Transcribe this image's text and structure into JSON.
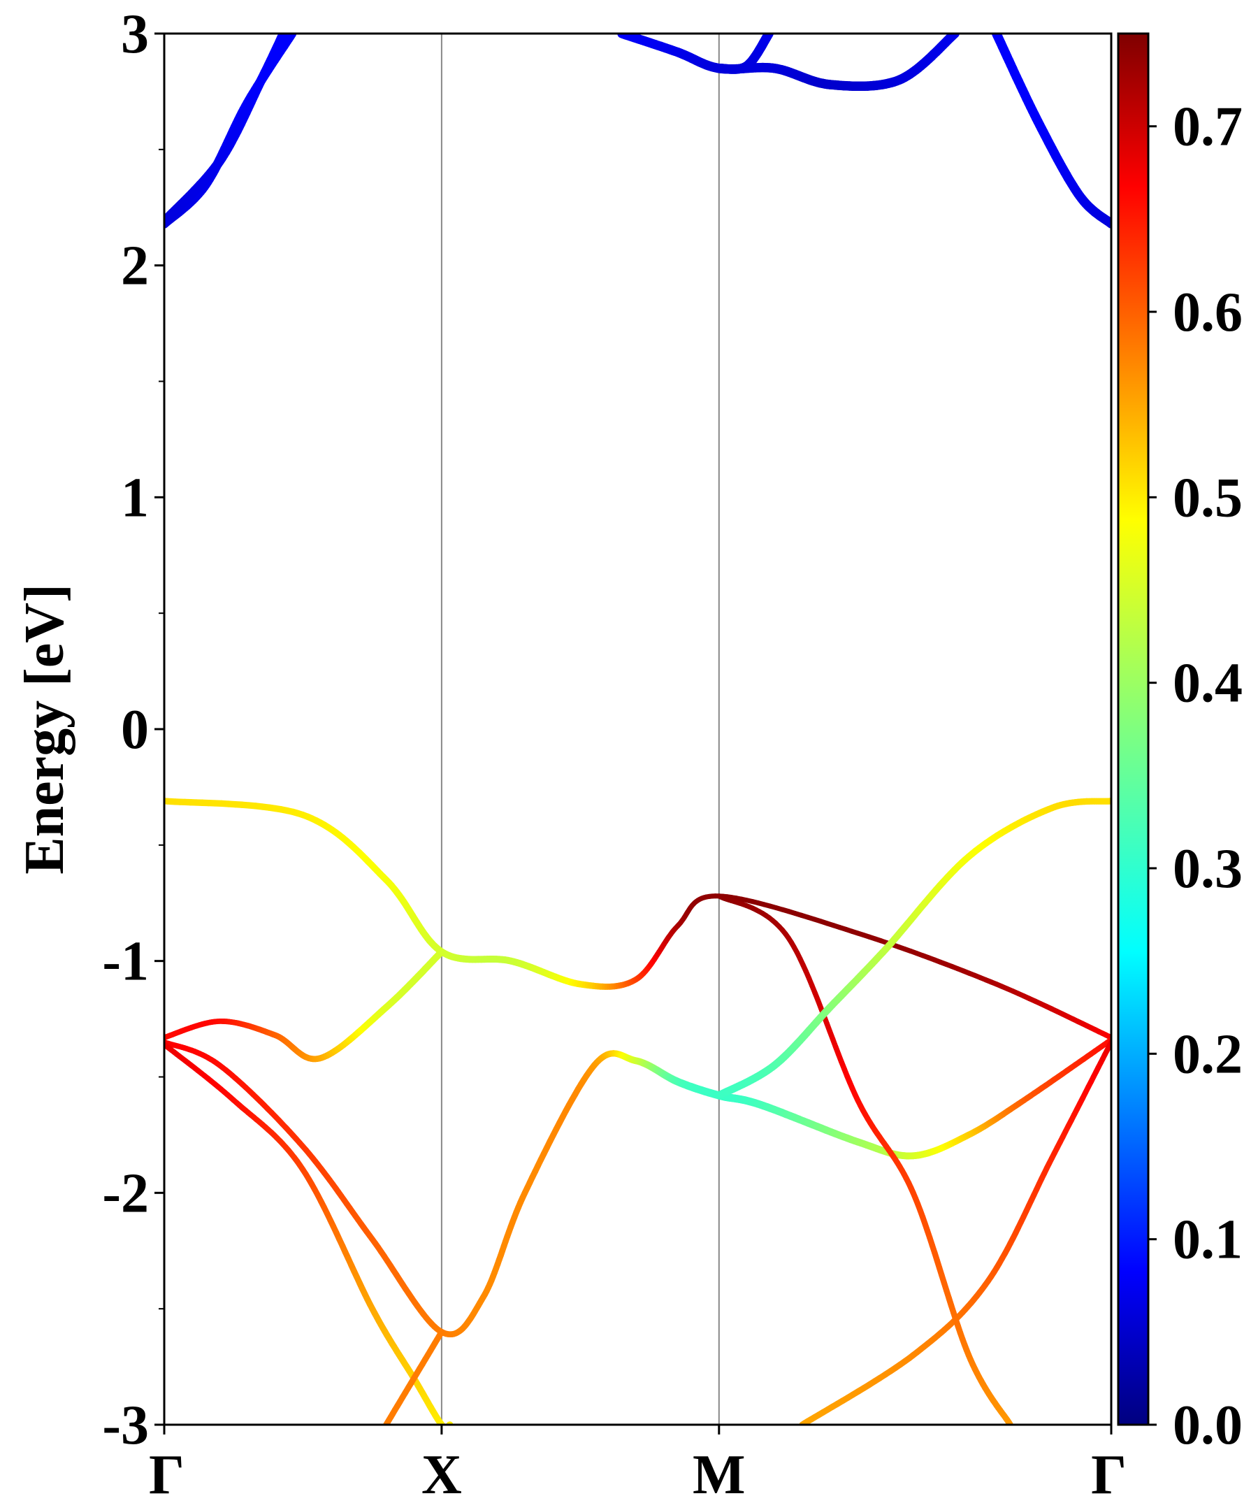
{
  "chart_data": {
    "type": "line",
    "title": "",
    "xlabel": "",
    "ylabel": "Energy [eV]",
    "ylim": [
      -3,
      3
    ],
    "y_ticks": [
      "3",
      "2",
      "1",
      "0",
      "-1",
      "-2",
      "-3"
    ],
    "y_tick_values": [
      3,
      2,
      1,
      0,
      -1,
      -2,
      -3
    ],
    "k_points": [
      {
        "label": "Γ",
        "x": 0
      },
      {
        "label": "X",
        "x": 1
      },
      {
        "label": "M",
        "x": 2
      },
      {
        "label": "Γ",
        "x": 3.414
      }
    ],
    "grid": false,
    "colormap": "jet",
    "colorbar": {
      "range": [
        0.0,
        0.75
      ],
      "ticks": [
        "0.7",
        "0.6",
        "0.5",
        "0.4",
        "0.3",
        "0.2",
        "0.1",
        "0.0"
      ],
      "tick_values": [
        0.7,
        0.6,
        0.5,
        0.4,
        0.3,
        0.2,
        0.1,
        0.0
      ],
      "placement": "right"
    },
    "bands": [
      {
        "points": [
          [
            0,
            -0.31,
            0.51
          ],
          [
            0.5,
            -0.37,
            0.5
          ],
          [
            0.8,
            -0.65,
            0.48
          ],
          [
            1,
            -0.96,
            0.45
          ],
          [
            1.25,
            -1.0,
            0.44
          ],
          [
            1.5,
            -1.1,
            0.5
          ],
          [
            1.7,
            -1.08,
            0.62
          ],
          [
            1.85,
            -0.85,
            0.72
          ],
          [
            2,
            -0.72,
            0.74
          ],
          [
            2.5,
            -0.88,
            0.74
          ],
          [
            3.0,
            -1.1,
            0.72
          ],
          [
            3.414,
            -1.33,
            0.67
          ]
        ]
      },
      {
        "points": [
          [
            0,
            -1.33,
            0.66
          ],
          [
            0.2,
            -1.26,
            0.66
          ],
          [
            0.4,
            -1.32,
            0.6
          ],
          [
            0.56,
            -1.42,
            0.55
          ],
          [
            0.8,
            -1.2,
            0.46
          ],
          [
            1,
            -0.96,
            0.45
          ]
        ]
      },
      {
        "points": [
          [
            0,
            -1.35,
            0.67
          ],
          [
            0.2,
            -1.45,
            0.66
          ],
          [
            0.5,
            -1.8,
            0.63
          ],
          [
            0.75,
            -2.2,
            0.6
          ],
          [
            1,
            -2.6,
            0.58
          ],
          [
            1.15,
            -2.45,
            0.57
          ],
          [
            1.3,
            -2.0,
            0.57
          ],
          [
            1.55,
            -1.45,
            0.56
          ],
          [
            1.7,
            -1.43,
            0.45
          ],
          [
            1.85,
            -1.52,
            0.33
          ],
          [
            2,
            -1.58,
            0.31
          ],
          [
            2.15,
            -1.62,
            0.32
          ],
          [
            2.5,
            -1.78,
            0.4
          ],
          [
            2.7,
            -1.84,
            0.45
          ],
          [
            2.9,
            -1.75,
            0.52
          ],
          [
            3.1,
            -1.6,
            0.6
          ],
          [
            3.414,
            -1.34,
            0.66
          ]
        ]
      },
      {
        "points": [
          [
            0,
            -1.36,
            0.68
          ],
          [
            0.25,
            -1.6,
            0.66
          ],
          [
            0.5,
            -1.9,
            0.62
          ],
          [
            0.75,
            -2.5,
            0.55
          ],
          [
            0.9,
            -2.8,
            0.52
          ],
          [
            1,
            -3.0,
            0.5
          ],
          [
            1.03,
            -3.0,
            0.5
          ]
        ]
      },
      {
        "points": [
          [
            2.3,
            -3.0,
            0.55
          ],
          [
            2.7,
            -2.7,
            0.57
          ],
          [
            2.97,
            -2.38,
            0.6
          ],
          [
            3.2,
            -1.85,
            0.64
          ],
          [
            3.414,
            -1.35,
            0.68
          ]
        ]
      },
      {
        "points": [
          [
            0.8,
            -3.0,
            0.58
          ],
          [
            1,
            -2.6,
            0.58
          ]
        ]
      },
      {
        "points": [
          [
            2,
            -0.72,
            0.74
          ],
          [
            2.25,
            -0.9,
            0.72
          ],
          [
            2.5,
            -1.6,
            0.66
          ],
          [
            2.7,
            -2.0,
            0.62
          ],
          [
            2.9,
            -2.7,
            0.58
          ],
          [
            3.05,
            -3.0,
            0.56
          ]
        ]
      },
      {
        "points": [
          [
            2,
            -1.58,
            0.31
          ],
          [
            2.2,
            -1.45,
            0.33
          ],
          [
            2.4,
            -1.2,
            0.38
          ],
          [
            2.6,
            -0.95,
            0.43
          ],
          [
            2.9,
            -0.55,
            0.48
          ],
          [
            3.2,
            -0.34,
            0.51
          ],
          [
            3.414,
            -0.31,
            0.51
          ]
        ]
      },
      {
        "points": [
          [
            0,
            2.18,
            0.06
          ],
          [
            0.15,
            2.35,
            0.07
          ],
          [
            0.3,
            2.7,
            0.08
          ],
          [
            0.46,
            3.0,
            0.08
          ]
        ]
      },
      {
        "points": [
          [
            0,
            2.19,
            0.06
          ],
          [
            0.2,
            2.45,
            0.07
          ],
          [
            0.35,
            2.8,
            0.08
          ],
          [
            0.43,
            3.0,
            0.08
          ]
        ]
      },
      {
        "points": [
          [
            1.65,
            3.0,
            0.08
          ],
          [
            1.85,
            2.92,
            0.07
          ],
          [
            2,
            2.85,
            0.06
          ],
          [
            2.2,
            2.85,
            0.06
          ],
          [
            2.4,
            2.78,
            0.05
          ],
          [
            2.65,
            2.8,
            0.06
          ],
          [
            2.85,
            3.0,
            0.07
          ]
        ]
      },
      {
        "points": [
          [
            2,
            2.85,
            0.06
          ],
          [
            2.1,
            2.86,
            0.06
          ],
          [
            2.18,
            3.0,
            0.07
          ]
        ]
      },
      {
        "points": [
          [
            3.0,
            3.0,
            0.08
          ],
          [
            3.15,
            2.62,
            0.08
          ],
          [
            3.3,
            2.3,
            0.07
          ],
          [
            3.414,
            2.18,
            0.06
          ]
        ]
      }
    ]
  }
}
